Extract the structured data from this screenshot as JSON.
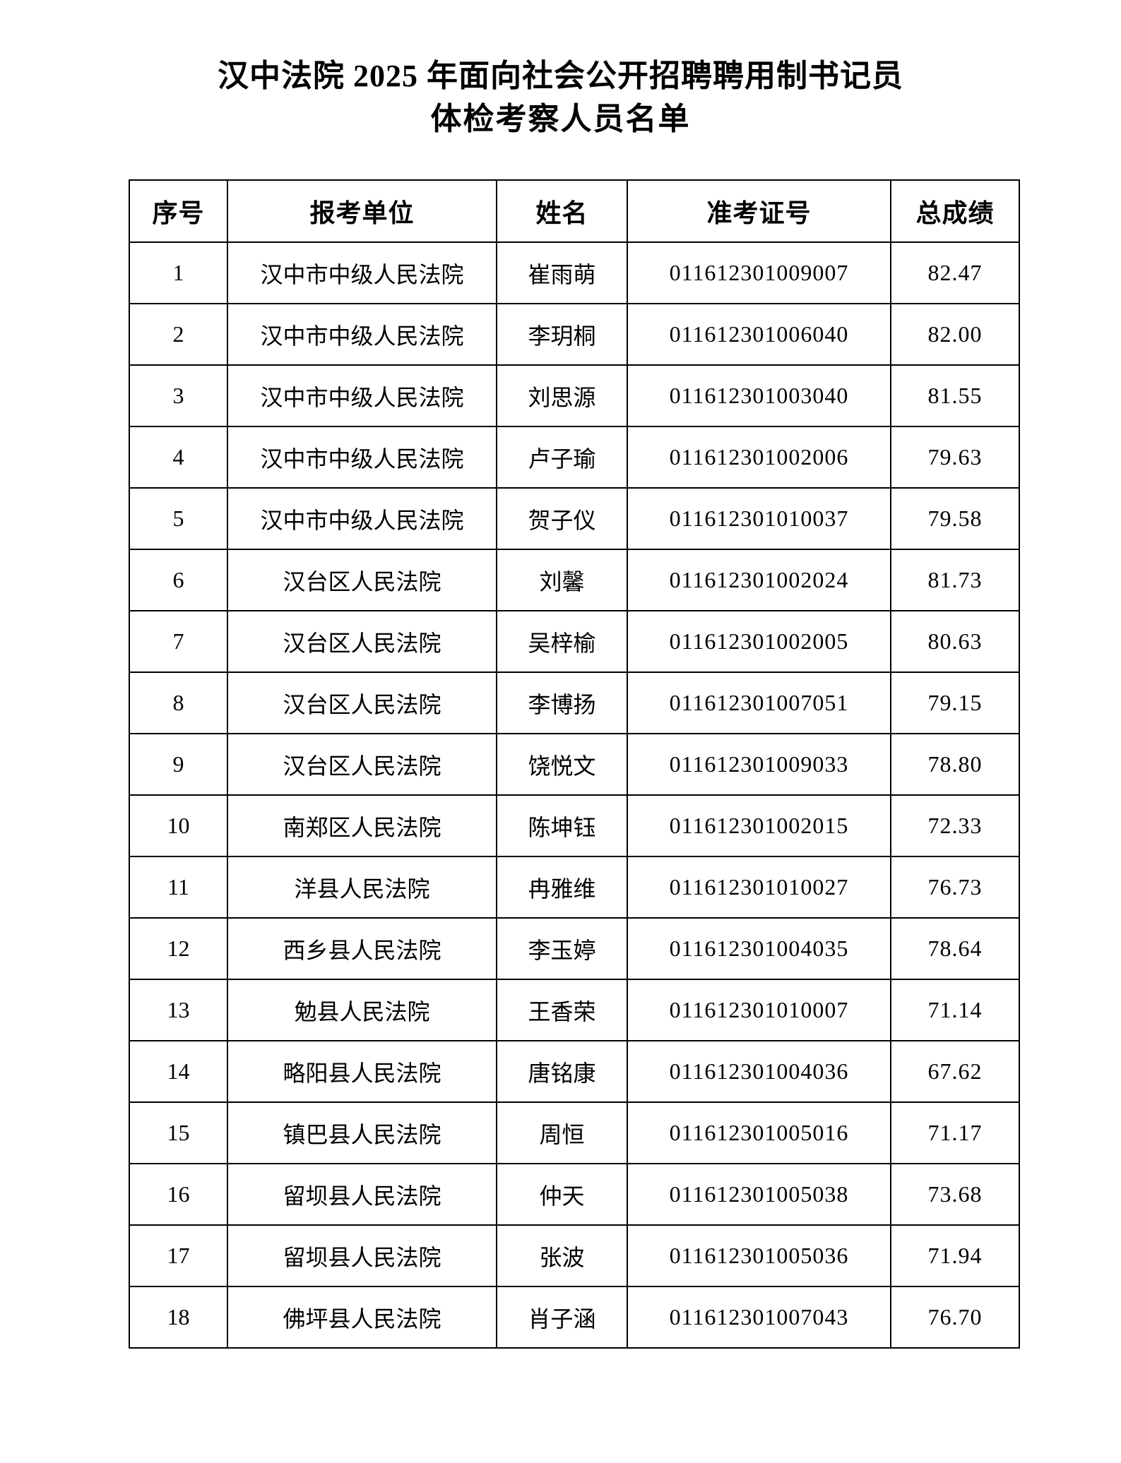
{
  "document": {
    "title_line1": "汉中法院 2025 年面向社会公开招聘聘用制书记员",
    "title_line2": "体检考察人员名单"
  },
  "table": {
    "headers": [
      "序号",
      "报考单位",
      "姓名",
      "准考证号",
      "总成绩"
    ],
    "rows": [
      [
        "1",
        "汉中市中级人民法院",
        "崔雨萌",
        "011612301009007",
        "82.47"
      ],
      [
        "2",
        "汉中市中级人民法院",
        "李玥桐",
        "011612301006040",
        "82.00"
      ],
      [
        "3",
        "汉中市中级人民法院",
        "刘思源",
        "011612301003040",
        "81.55"
      ],
      [
        "4",
        "汉中市中级人民法院",
        "卢子瑜",
        "011612301002006",
        "79.63"
      ],
      [
        "5",
        "汉中市中级人民法院",
        "贺子仪",
        "011612301010037",
        "79.58"
      ],
      [
        "6",
        "汉台区人民法院",
        "刘馨",
        "011612301002024",
        "81.73"
      ],
      [
        "7",
        "汉台区人民法院",
        "吴梓榆",
        "011612301002005",
        "80.63"
      ],
      [
        "8",
        "汉台区人民法院",
        "李博扬",
        "011612301007051",
        "79.15"
      ],
      [
        "9",
        "汉台区人民法院",
        "饶悦文",
        "011612301009033",
        "78.80"
      ],
      [
        "10",
        "南郑区人民法院",
        "陈坤钰",
        "011612301002015",
        "72.33"
      ],
      [
        "11",
        "洋县人民法院",
        "冉雅维",
        "011612301010027",
        "76.73"
      ],
      [
        "12",
        "西乡县人民法院",
        "李玉婷",
        "011612301004035",
        "78.64"
      ],
      [
        "13",
        "勉县人民法院",
        "王香荣",
        "011612301010007",
        "71.14"
      ],
      [
        "14",
        "略阳县人民法院",
        "唐铭康",
        "011612301004036",
        "67.62"
      ],
      [
        "15",
        "镇巴县人民法院",
        "周恒",
        "011612301005016",
        "71.17"
      ],
      [
        "16",
        "留坝县人民法院",
        "仲天",
        "011612301005038",
        "73.68"
      ],
      [
        "17",
        "留坝县人民法院",
        "张波",
        "011612301005036",
        "71.94"
      ],
      [
        "18",
        "佛坪县人民法院",
        "肖子涵",
        "011612301007043",
        "76.70"
      ]
    ]
  }
}
